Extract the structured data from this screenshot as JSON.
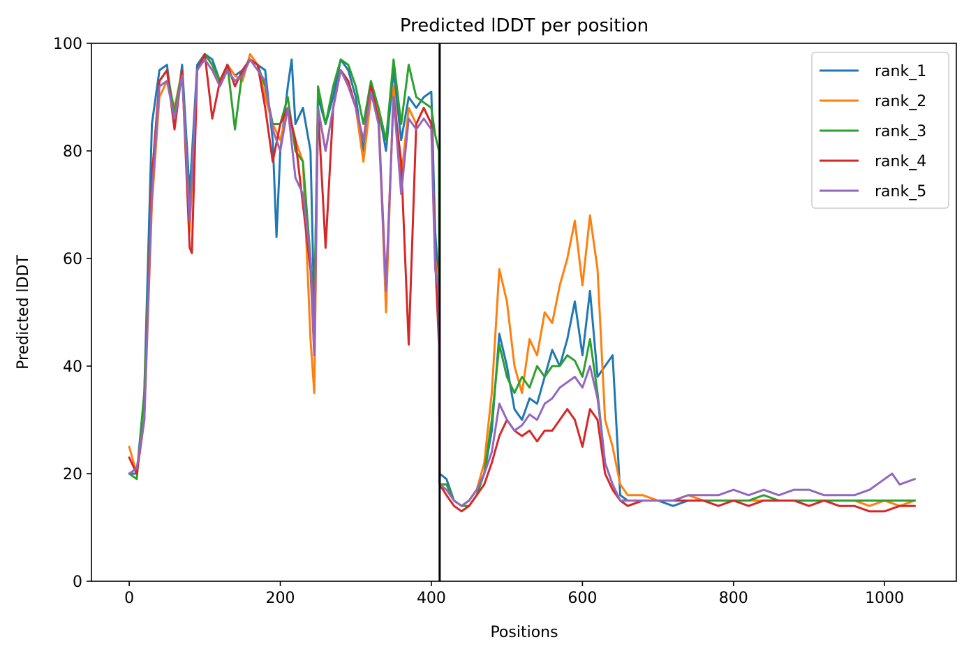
{
  "chart_data": {
    "type": "line",
    "title": "Predicted lDDT per position",
    "xlabel": "Positions",
    "ylabel": "Predicted lDDT",
    "xlim": [
      -50,
      1095
    ],
    "ylim": [
      0,
      100
    ],
    "xticks": [
      0,
      200,
      400,
      600,
      800,
      1000
    ],
    "yticks": [
      0,
      20,
      40,
      60,
      80,
      100
    ],
    "grid": false,
    "legend_position": "top-right",
    "vertical_line_x": 411,
    "series": [
      {
        "name": "rank_1",
        "color": "#1f77b4",
        "x": [
          0,
          10,
          20,
          30,
          40,
          50,
          60,
          70,
          80,
          90,
          100,
          110,
          120,
          130,
          140,
          150,
          160,
          170,
          180,
          190,
          195,
          200,
          210,
          215,
          220,
          230,
          240,
          245,
          250,
          260,
          270,
          280,
          290,
          300,
          310,
          320,
          330,
          340,
          350,
          360,
          370,
          380,
          390,
          400,
          405,
          410,
          411,
          420,
          430,
          440,
          450,
          460,
          470,
          480,
          490,
          500,
          510,
          520,
          530,
          540,
          550,
          560,
          570,
          580,
          590,
          600,
          610,
          620,
          630,
          640,
          650,
          660,
          680,
          700,
          720,
          740,
          760,
          780,
          800,
          820,
          840,
          860,
          880,
          900,
          920,
          940,
          960,
          980,
          1000,
          1020,
          1040
        ],
        "y": [
          20,
          20,
          35,
          85,
          95,
          96,
          85,
          96,
          72,
          96,
          98,
          97,
          93,
          96,
          94,
          95,
          97,
          96,
          95,
          82,
          64,
          80,
          92,
          97,
          85,
          88,
          80,
          50,
          90,
          85,
          90,
          97,
          95,
          90,
          80,
          92,
          88,
          80,
          95,
          82,
          90,
          88,
          90,
          91,
          65,
          55,
          20,
          19,
          15,
          14,
          15,
          17,
          20,
          28,
          46,
          40,
          32,
          30,
          34,
          33,
          38,
          43,
          40,
          45,
          52,
          42,
          54,
          38,
          40,
          42,
          16,
          15,
          15,
          15,
          14,
          15,
          15,
          15,
          15,
          15,
          15,
          15,
          15,
          15,
          15,
          15,
          15,
          15,
          15,
          15,
          15
        ]
      },
      {
        "name": "rank_2",
        "color": "#ff7f0e",
        "x": [
          0,
          10,
          20,
          30,
          40,
          50,
          60,
          70,
          80,
          90,
          100,
          110,
          120,
          130,
          140,
          150,
          160,
          170,
          180,
          190,
          200,
          210,
          220,
          230,
          240,
          245,
          250,
          260,
          270,
          280,
          290,
          300,
          310,
          320,
          330,
          340,
          350,
          360,
          370,
          380,
          390,
          400,
          405,
          410,
          411,
          420,
          430,
          440,
          450,
          460,
          470,
          480,
          490,
          500,
          510,
          520,
          530,
          540,
          550,
          560,
          570,
          580,
          590,
          600,
          610,
          620,
          630,
          640,
          650,
          660,
          680,
          700,
          720,
          740,
          760,
          780,
          800,
          820,
          840,
          860,
          880,
          900,
          920,
          940,
          960,
          980,
          1000,
          1020,
          1040
        ],
        "y": [
          25,
          20,
          30,
          70,
          90,
          93,
          88,
          95,
          65,
          95,
          98,
          96,
          92,
          96,
          94,
          93,
          98,
          96,
          90,
          85,
          82,
          88,
          82,
          78,
          45,
          35,
          88,
          80,
          88,
          95,
          93,
          88,
          78,
          90,
          88,
          50,
          92,
          75,
          88,
          85,
          88,
          85,
          60,
          55,
          18,
          18,
          15,
          14,
          15,
          17,
          22,
          35,
          58,
          52,
          40,
          35,
          45,
          42,
          50,
          48,
          55,
          60,
          67,
          55,
          68,
          58,
          30,
          25,
          18,
          16,
          16,
          15,
          15,
          16,
          15,
          15,
          15,
          15,
          15,
          15,
          15,
          15,
          15,
          15,
          15,
          14,
          15,
          14,
          15
        ]
      },
      {
        "name": "rank_3",
        "color": "#2ca02c",
        "x": [
          0,
          10,
          20,
          30,
          40,
          50,
          60,
          70,
          80,
          90,
          100,
          110,
          120,
          130,
          140,
          150,
          160,
          170,
          180,
          190,
          200,
          210,
          220,
          230,
          240,
          245,
          250,
          260,
          270,
          280,
          290,
          300,
          310,
          320,
          330,
          340,
          350,
          360,
          370,
          380,
          390,
          400,
          405,
          410,
          411,
          420,
          430,
          440,
          450,
          460,
          470,
          480,
          490,
          500,
          510,
          520,
          530,
          540,
          550,
          560,
          570,
          580,
          590,
          600,
          610,
          620,
          630,
          640,
          650,
          660,
          680,
          700,
          720,
          740,
          760,
          780,
          800,
          820,
          840,
          860,
          880,
          900,
          920,
          940,
          960,
          980,
          1000,
          1020,
          1040
        ],
        "y": [
          20,
          19,
          35,
          75,
          93,
          95,
          87,
          95,
          68,
          95,
          98,
          96,
          93,
          96,
          84,
          95,
          97,
          96,
          92,
          85,
          85,
          90,
          80,
          78,
          60,
          48,
          92,
          85,
          92,
          97,
          96,
          92,
          85,
          93,
          88,
          82,
          97,
          85,
          96,
          90,
          89,
          88,
          83,
          80,
          18,
          18,
          15,
          14,
          14,
          16,
          20,
          30,
          44,
          38,
          35,
          38,
          36,
          40,
          38,
          40,
          40,
          42,
          41,
          38,
          45,
          35,
          22,
          18,
          15,
          14,
          15,
          15,
          15,
          15,
          15,
          15,
          15,
          15,
          16,
          15,
          15,
          15,
          15,
          15,
          15,
          15,
          15,
          15,
          15
        ]
      },
      {
        "name": "rank_4",
        "color": "#d62728",
        "x": [
          0,
          10,
          20,
          30,
          40,
          50,
          60,
          70,
          80,
          83,
          90,
          100,
          110,
          120,
          130,
          140,
          150,
          160,
          170,
          180,
          190,
          200,
          210,
          220,
          230,
          240,
          245,
          250,
          260,
          270,
          280,
          290,
          300,
          310,
          320,
          330,
          340,
          350,
          360,
          370,
          380,
          390,
          400,
          405,
          410,
          411,
          420,
          430,
          440,
          450,
          460,
          470,
          480,
          490,
          500,
          510,
          520,
          530,
          540,
          550,
          560,
          570,
          580,
          590,
          600,
          610,
          620,
          630,
          640,
          650,
          660,
          680,
          700,
          720,
          740,
          760,
          780,
          800,
          820,
          840,
          860,
          880,
          900,
          920,
          940,
          960,
          980,
          1000,
          1020,
          1040
        ],
        "y": [
          23,
          20,
          30,
          75,
          93,
          95,
          84,
          95,
          62,
          61,
          95,
          98,
          86,
          93,
          96,
          92,
          95,
          97,
          96,
          88,
          78,
          85,
          88,
          82,
          70,
          58,
          42,
          88,
          62,
          88,
          95,
          93,
          88,
          82,
          92,
          86,
          55,
          90,
          78,
          44,
          85,
          88,
          85,
          60,
          44,
          18,
          16,
          14,
          13,
          14,
          16,
          18,
          22,
          27,
          30,
          28,
          27,
          28,
          26,
          28,
          28,
          30,
          32,
          30,
          25,
          32,
          30,
          20,
          17,
          15,
          14,
          15,
          15,
          15,
          15,
          15,
          14,
          15,
          14,
          15,
          15,
          15,
          14,
          15,
          14,
          14,
          13,
          13,
          14,
          14
        ]
      },
      {
        "name": "rank_5",
        "color": "#9467bd",
        "x": [
          0,
          10,
          20,
          30,
          40,
          50,
          60,
          70,
          80,
          90,
          100,
          110,
          120,
          130,
          140,
          150,
          160,
          170,
          180,
          190,
          200,
          210,
          220,
          230,
          240,
          245,
          250,
          260,
          270,
          280,
          290,
          300,
          310,
          320,
          330,
          340,
          350,
          360,
          370,
          380,
          390,
          400,
          405,
          410,
          411,
          420,
          430,
          440,
          450,
          460,
          470,
          480,
          490,
          500,
          510,
          520,
          530,
          540,
          550,
          560,
          570,
          580,
          590,
          600,
          610,
          620,
          630,
          640,
          650,
          660,
          680,
          700,
          720,
          740,
          760,
          780,
          800,
          820,
          840,
          860,
          880,
          900,
          920,
          940,
          960,
          980,
          1000,
          1010,
          1020,
          1040
        ],
        "y": [
          20,
          21,
          30,
          72,
          92,
          93,
          86,
          94,
          67,
          95,
          97,
          95,
          92,
          95,
          93,
          94,
          97,
          95,
          93,
          84,
          80,
          88,
          75,
          72,
          60,
          42,
          88,
          80,
          88,
          95,
          92,
          88,
          82,
          91,
          85,
          54,
          90,
          72,
          86,
          84,
          86,
          84,
          58,
          54,
          18,
          17,
          15,
          14,
          15,
          17,
          20,
          24,
          33,
          30,
          28,
          29,
          31,
          30,
          33,
          34,
          36,
          37,
          38,
          36,
          40,
          34,
          22,
          18,
          15,
          15,
          15,
          15,
          15,
          16,
          16,
          16,
          17,
          16,
          17,
          16,
          17,
          17,
          16,
          16,
          16,
          17,
          19,
          20,
          18,
          19
        ]
      }
    ]
  }
}
